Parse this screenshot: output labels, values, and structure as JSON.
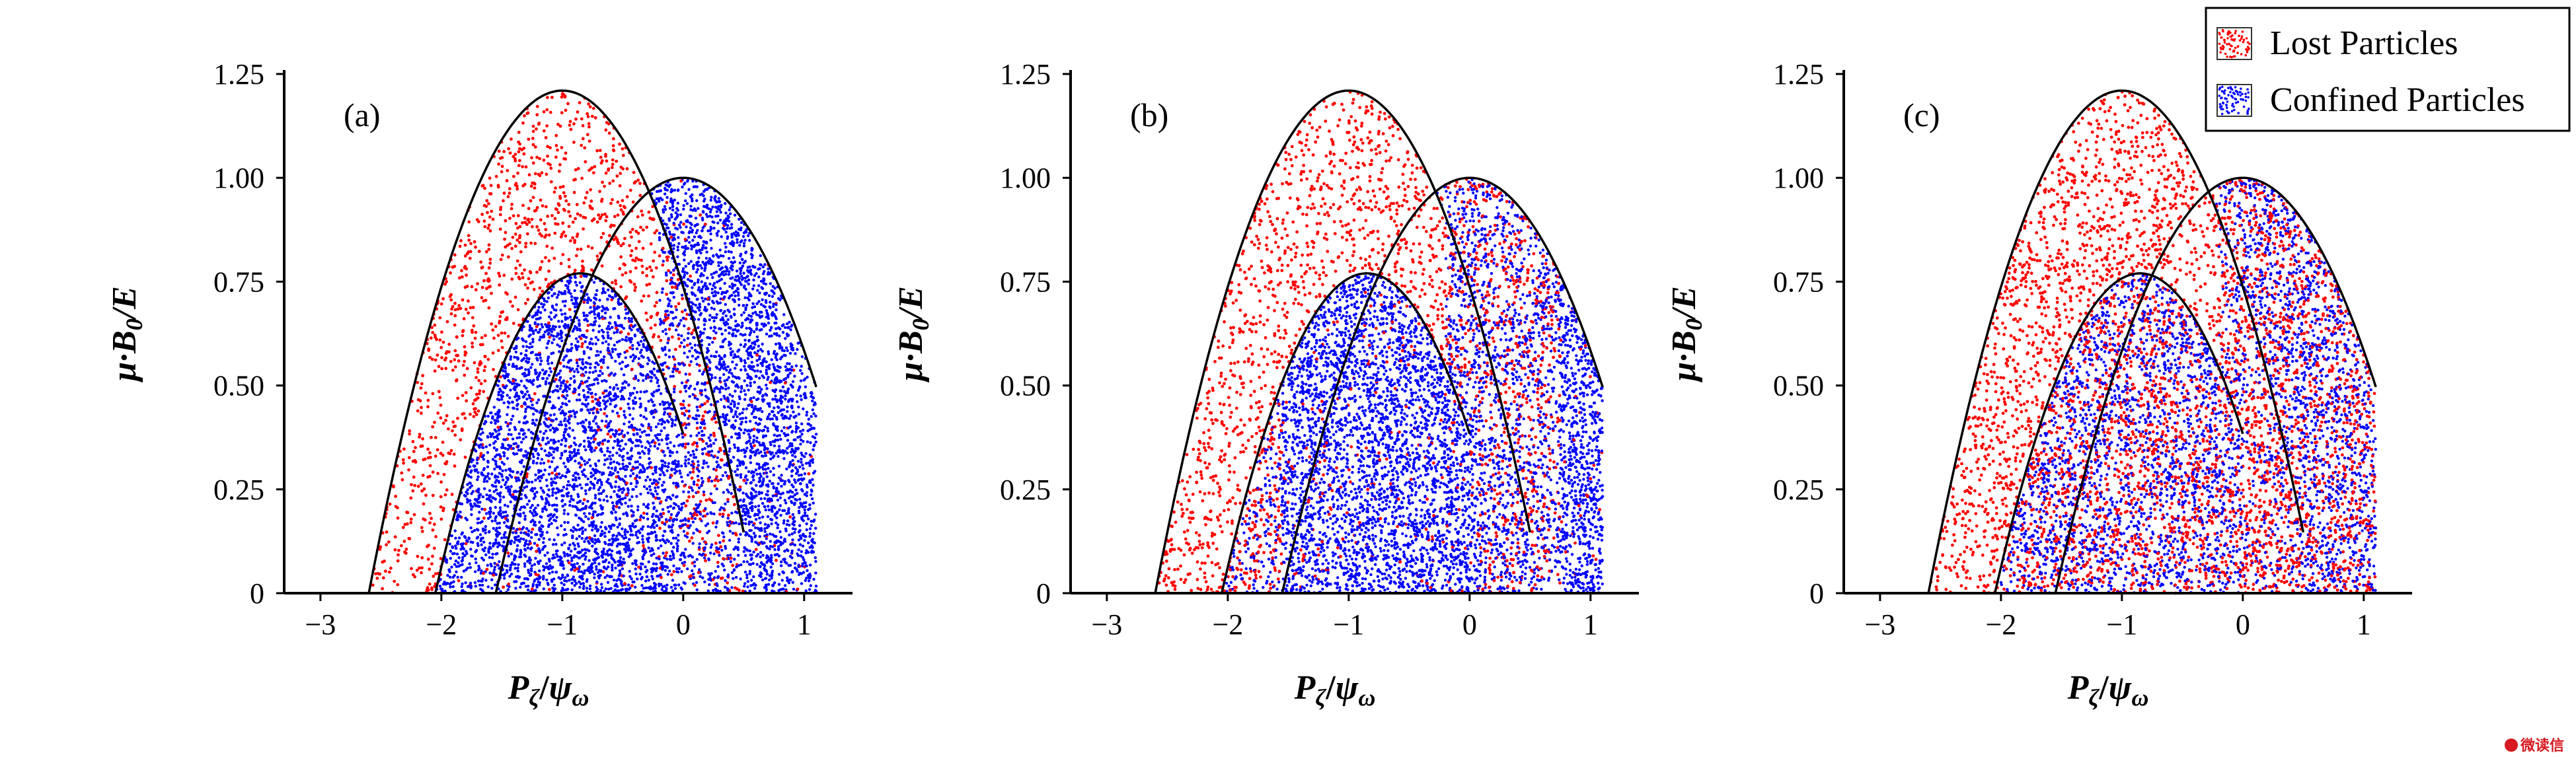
{
  "legend": {
    "lost": {
      "label": "Lost Particles",
      "color": "#ff0000"
    },
    "confined": {
      "label": "Confined Particles",
      "color": "#0000ff"
    }
  },
  "axis_titles": {
    "x": {
      "main": "P",
      "sub": "ζ",
      "slash": "/",
      "main2": "ψ",
      "sub2": "ω"
    },
    "y": {
      "main": "μ·B",
      "sub": "0",
      "rest": "/E"
    }
  },
  "watermark": {
    "text": "微读信"
  },
  "chart_data": [
    {
      "type": "scatter",
      "panel_label": "(a)",
      "xlim": [
        -3.3,
        1.4
      ],
      "ylim": [
        0,
        1.25
      ],
      "x_ticks": [
        -3,
        -2,
        -1,
        0,
        1
      ],
      "x_tick_labels": [
        "−3",
        "−2",
        "−1",
        "0",
        "1"
      ],
      "y_ticks": [
        0,
        0.25,
        0.5,
        0.75,
        1.0,
        1.25
      ],
      "y_tick_labels": [
        "0",
        "0.25",
        "0.50",
        "0.75",
        "1.00",
        "1.25"
      ],
      "boundary_curves": [
        {
          "x0": -2.6,
          "x1": 0.5,
          "peak_x": -1.0,
          "peak_y": 1.21
        },
        {
          "x0": -1.55,
          "x1": 1.1,
          "peak_x": 0.0,
          "peak_y": 1.0
        },
        {
          "x0": -2.05,
          "x1": 0.0,
          "peak_x": -0.85,
          "peak_y": 0.77
        }
      ],
      "mix": "separate"
    },
    {
      "type": "scatter",
      "panel_label": "(b)",
      "xlim": [
        -3.3,
        1.4
      ],
      "ylim": [
        0,
        1.25
      ],
      "x_ticks": [
        -3,
        -2,
        -1,
        0,
        1
      ],
      "x_tick_labels": [
        "−3",
        "−2",
        "−1",
        "0",
        "1"
      ],
      "y_ticks": [
        0,
        0.25,
        0.5,
        0.75,
        1.0,
        1.25
      ],
      "y_tick_labels": [
        "0",
        "0.25",
        "0.50",
        "0.75",
        "1.00",
        "1.25"
      ],
      "boundary_curves": [
        {
          "x0": -2.6,
          "x1": 0.5,
          "peak_x": -1.0,
          "peak_y": 1.21
        },
        {
          "x0": -1.55,
          "x1": 1.1,
          "peak_x": 0.0,
          "peak_y": 1.0
        },
        {
          "x0": -2.05,
          "x1": 0.0,
          "peak_x": -0.85,
          "peak_y": 0.77
        }
      ],
      "mix": "partial"
    },
    {
      "type": "scatter",
      "panel_label": "(c)",
      "xlim": [
        -3.3,
        1.4
      ],
      "ylim": [
        0,
        1.25
      ],
      "x_ticks": [
        -3,
        -2,
        -1,
        0,
        1
      ],
      "x_tick_labels": [
        "−3",
        "−2",
        "−1",
        "0",
        "1"
      ],
      "y_ticks": [
        0,
        0.25,
        0.5,
        0.75,
        1.0,
        1.25
      ],
      "y_tick_labels": [
        "0",
        "0.25",
        "0.50",
        "0.75",
        "1.00",
        "1.25"
      ],
      "boundary_curves": [
        {
          "x0": -2.6,
          "x1": 0.5,
          "peak_x": -1.0,
          "peak_y": 1.21
        },
        {
          "x0": -1.55,
          "x1": 1.1,
          "peak_x": 0.0,
          "peak_y": 1.0
        },
        {
          "x0": -2.05,
          "x1": 0.0,
          "peak_x": -0.85,
          "peak_y": 0.77
        }
      ],
      "mix": "strong"
    }
  ]
}
